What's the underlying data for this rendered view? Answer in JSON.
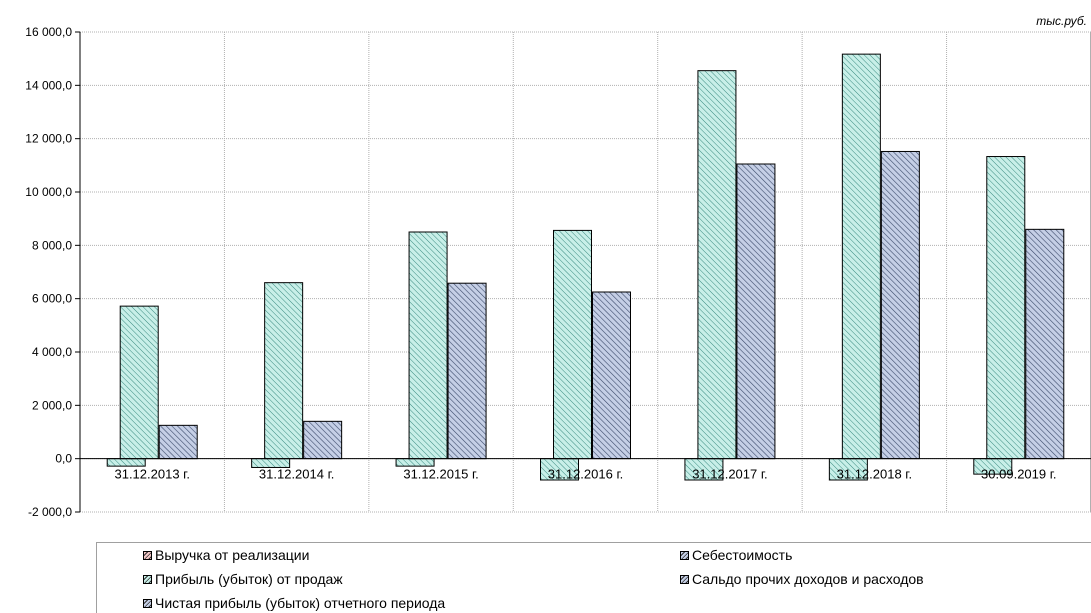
{
  "unit_label": "тыс.руб.",
  "colors": {
    "revenue": "#f2c6c6",
    "cost": "#c5cfe6",
    "sales_profit": "#c8efe8",
    "other_balance": "#c5cfe6",
    "net_profit": "#c5cfe6"
  },
  "chart_data": {
    "type": "bar",
    "categories": [
      "31.12.2013 г.",
      "31.12.2014 г.",
      "31.12.2015 г.",
      "31.12.2016 г.",
      "31.12.2017 г.",
      "31.12.2018 г.",
      "30.09.2019 г."
    ],
    "ylim": [
      -2000,
      16000
    ],
    "yticks": [
      -2000,
      0,
      2000,
      4000,
      6000,
      8000,
      10000,
      12000,
      14000,
      16000
    ],
    "ytick_labels": [
      "-2 000,0",
      "0,0",
      "2 000,0",
      "4 000,0",
      "6 000,0",
      "8 000,0",
      "10 000,0",
      "12 000,0",
      "14 000,0",
      "16 000,0"
    ],
    "grid": true,
    "legend_position": "bottom",
    "series": [
      {
        "name": "Выручка от реализации",
        "values": [
          0,
          0,
          0,
          0,
          0,
          0,
          0
        ]
      },
      {
        "name": "Себестоимость",
        "values": [
          0,
          0,
          0,
          0,
          0,
          0,
          0
        ]
      },
      {
        "name": "Прибыль (убыток) от продаж",
        "values": [
          5720,
          6600,
          8500,
          8560,
          14550,
          15170,
          11330
        ]
      },
      {
        "name": "Сальдо прочих доходов и расходов",
        "values": [
          -280,
          -330,
          -280,
          -800,
          -800,
          -800,
          -580
        ]
      },
      {
        "name": "Чистая прибыль (убыток) отчетного периода",
        "values": [
          1250,
          1400,
          6580,
          6250,
          11050,
          11520,
          8600
        ]
      }
    ]
  }
}
